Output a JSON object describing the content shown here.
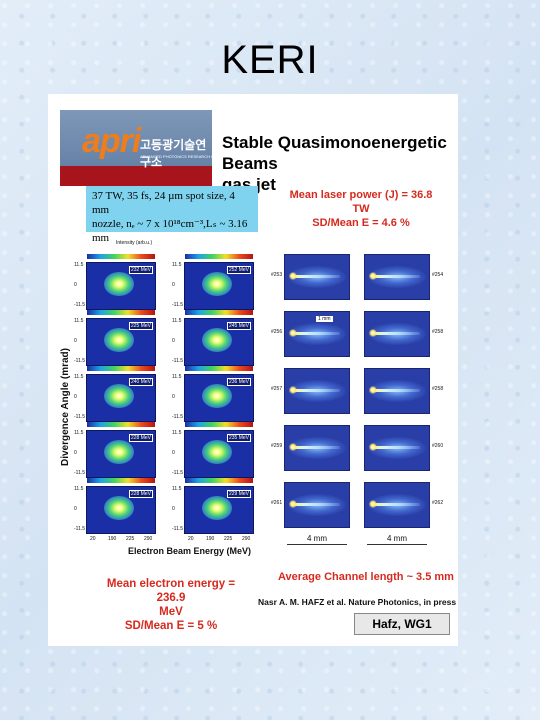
{
  "slide": {
    "title": "KERI"
  },
  "logo": {
    "brand": "apri",
    "korean": "고등광기술연구소",
    "sub": "ADVANCED PHOTONICS RESEARCH INSTITUTE"
  },
  "headline": {
    "line1": "Stable Quasimonoenergetic Beams",
    "line2": "gas jet"
  },
  "params": {
    "line1": "37 TW, 35 fs, 24 µm spot size, 4 mm",
    "line2": "nozzle, nₑ ~ 7 x 10¹⁸cm⁻³,Lₛ ~ 3.16 mm"
  },
  "laser_stats": {
    "line1": "Mean laser power (J) = 36.8 TW",
    "line2": "SD/Mean E = 4.6 %"
  },
  "electron_stats": {
    "line1": "Mean electron energy = 236.9",
    "line2": "MeV",
    "line3": "SD/Mean E = 5 %"
  },
  "channel_stats": {
    "line1": "Average Channel length ~ 3.5 mm"
  },
  "citation": "Nasr A. M. HAFZ et al. Nature Photonics, in press",
  "author": "Hafz, WG1",
  "spectra": {
    "y_axis_label": "Divergence Angle (mrad)",
    "x_axis_label": "Electron Beam Energy (MeV)",
    "intensity_label": "Intensity (arb.u.)",
    "energies": [
      "232 MeV",
      "252 MeV",
      "225 MeV",
      "245 MeV",
      "240 MeV",
      "236 MeV",
      "228 MeV",
      "235 MeV",
      "228 MeV",
      "229 MeV"
    ],
    "y_ticks": [
      "11.5",
      "0",
      "-11.5"
    ],
    "x_ticks": [
      "20",
      "190",
      "225",
      "290"
    ]
  },
  "channels": {
    "shots_left": [
      "#253",
      "#256",
      "#257",
      "#259",
      "#261"
    ],
    "shots_right": [
      "#254",
      "#258",
      "#258",
      "#260",
      "#262"
    ],
    "scale_label": "4 mm",
    "marker_label": "1 mm"
  }
}
